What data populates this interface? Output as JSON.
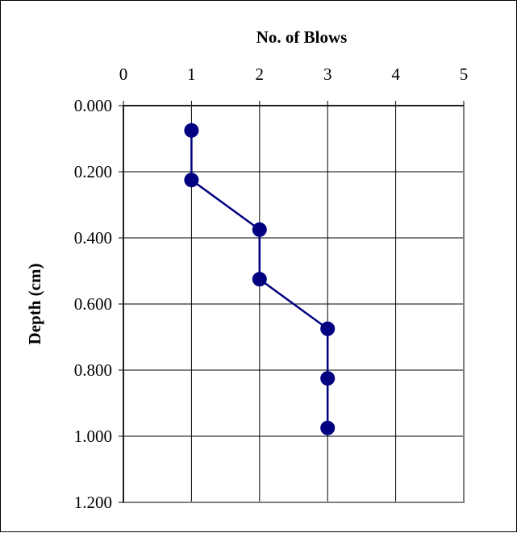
{
  "chart_data": {
    "type": "line",
    "xlabel": "No. of Blows",
    "ylabel": "Depth (cm)",
    "xlim": [
      0,
      5
    ],
    "ylim": [
      0,
      1.2
    ],
    "y_inverted": true,
    "x_axis_position": "top",
    "grid": true,
    "legend": "none",
    "x_ticks": [
      "0",
      "1",
      "2",
      "3",
      "4",
      "5"
    ],
    "y_ticks": [
      "0.000",
      "0.200",
      "0.400",
      "0.600",
      "0.800",
      "1.000",
      "1.200"
    ],
    "x_tick_values": [
      0,
      1,
      2,
      3,
      4,
      5
    ],
    "y_tick_values": [
      0,
      0.2,
      0.4,
      0.6,
      0.8,
      1.0,
      1.2
    ],
    "series": [
      {
        "x": [
          1,
          1,
          2,
          2,
          3,
          3,
          3
        ],
        "y": [
          0.075,
          0.225,
          0.375,
          0.525,
          0.675,
          0.825,
          0.975
        ]
      }
    ],
    "colors": {
      "series": "#000080",
      "grid": "#000000",
      "plot_border": "#808080"
    }
  }
}
